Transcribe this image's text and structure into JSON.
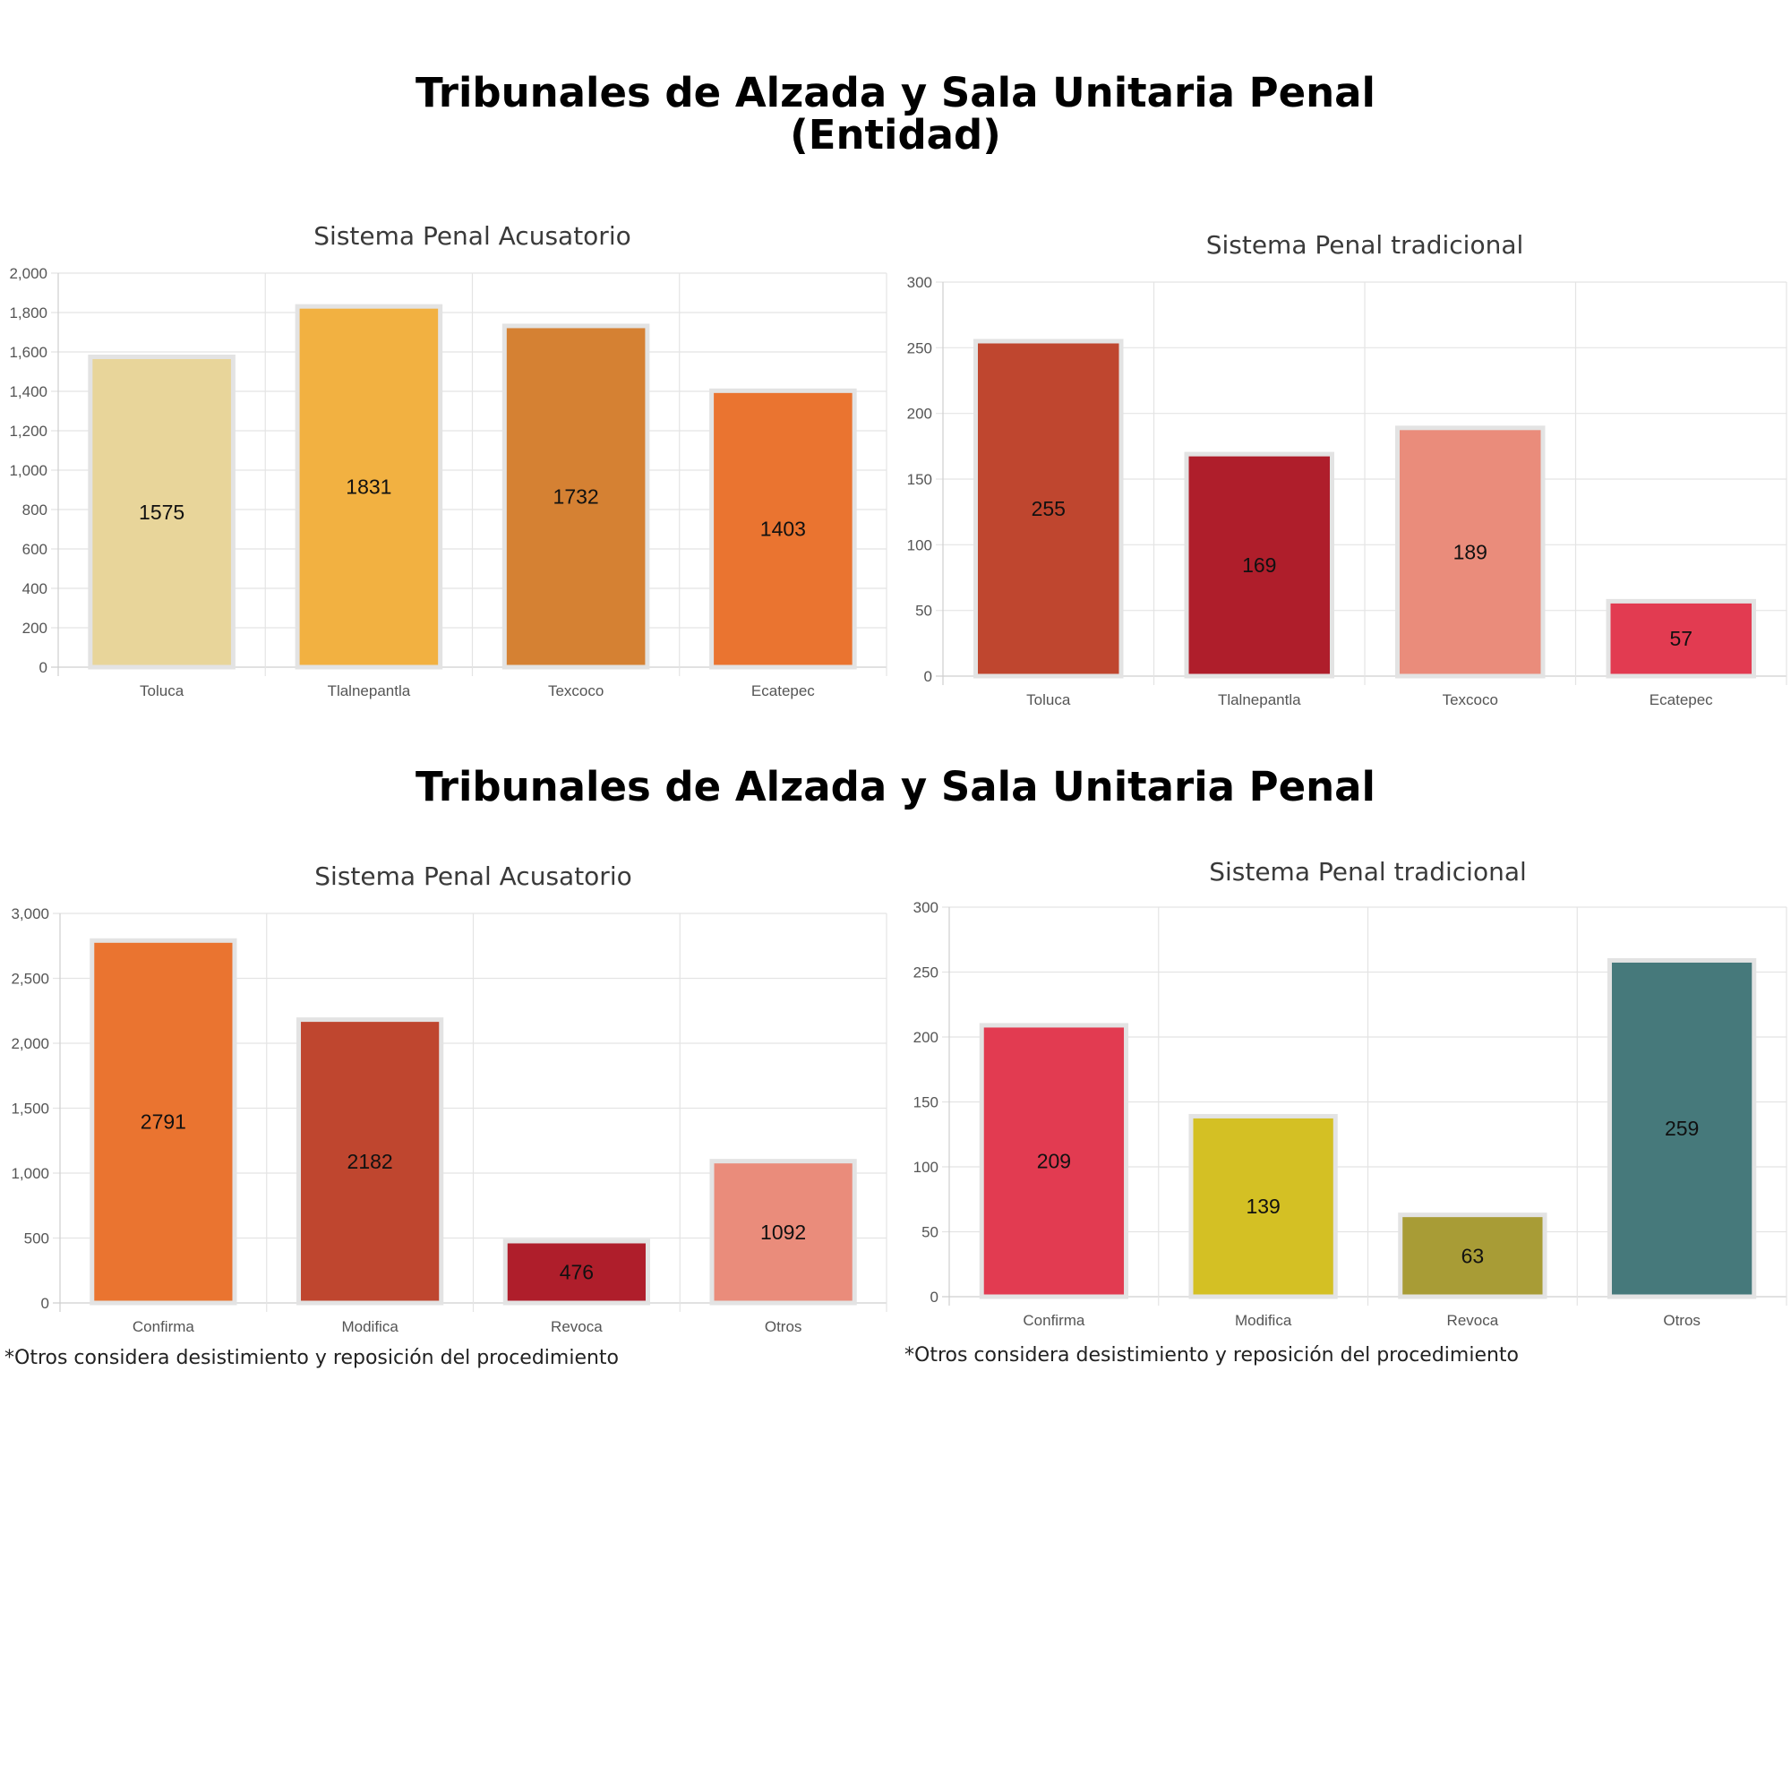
{
  "titles": {
    "section_1_line_1": "Tribunales de Alzada y Sala Unitaria Penal",
    "section_1_line_2": "(Entidad)",
    "section_2": "Tribunales de Alzada y Sala Unitaria Penal"
  },
  "footnotes": {
    "left": "*Otros considera desistimiento y reposición del procedimiento",
    "right": "*Otros considera desistimiento y reposición del procedimiento"
  },
  "chart_data": [
    {
      "type": "bar",
      "title": "Sistema Penal Acusatorio",
      "categories": [
        "Toluca",
        "Tlalnepantla",
        "Texcoco",
        "Ecatepec"
      ],
      "values": [
        1575,
        1831,
        1732,
        1403
      ],
      "colors": [
        "#e8d59a",
        "#f2b141",
        "#d58133",
        "#ea7430"
      ],
      "ylim": [
        0,
        2000
      ],
      "yticks": [
        "0",
        "200",
        "400",
        "600",
        "800",
        "1,000",
        "1,200",
        "1,400",
        "1,600",
        "1,800",
        "2,000"
      ],
      "grid": true,
      "data_labels": true
    },
    {
      "type": "bar",
      "title": "Sistema Penal tradicional",
      "categories": [
        "Toluca",
        "Tlalnepantla",
        "Texcoco",
        "Ecatepec"
      ],
      "values": [
        255,
        169,
        189,
        57
      ],
      "colors": [
        "#bf462f",
        "#af1e2b",
        "#ea8c7b",
        "#e23b51"
      ],
      "ylim": [
        0,
        300
      ],
      "yticks": [
        "0",
        "50",
        "100",
        "150",
        "200",
        "250",
        "300"
      ],
      "grid": true,
      "data_labels": true
    },
    {
      "type": "bar",
      "title": "Sistema Penal Acusatorio",
      "categories": [
        "Confirma",
        "Modifica",
        "Revoca",
        "Otros"
      ],
      "values": [
        2791,
        2182,
        476,
        1092
      ],
      "colors": [
        "#ea7430",
        "#bf462f",
        "#af1e2b",
        "#ea8c7b"
      ],
      "ylim": [
        0,
        3000
      ],
      "yticks": [
        "0",
        "500",
        "1,000",
        "1,500",
        "2,000",
        "2,500",
        "3,000"
      ],
      "grid": true,
      "data_labels": true
    },
    {
      "type": "bar",
      "title": "Sistema Penal tradicional",
      "categories": [
        "Confirma",
        "Modifica",
        "Revoca",
        "Otros"
      ],
      "values": [
        209,
        139,
        63,
        259
      ],
      "colors": [
        "#e23b51",
        "#d4c024",
        "#a89c36",
        "#46797b"
      ],
      "ylim": [
        0,
        300
      ],
      "yticks": [
        "0",
        "50",
        "100",
        "150",
        "200",
        "250",
        "300"
      ],
      "grid": true,
      "data_labels": true
    }
  ]
}
